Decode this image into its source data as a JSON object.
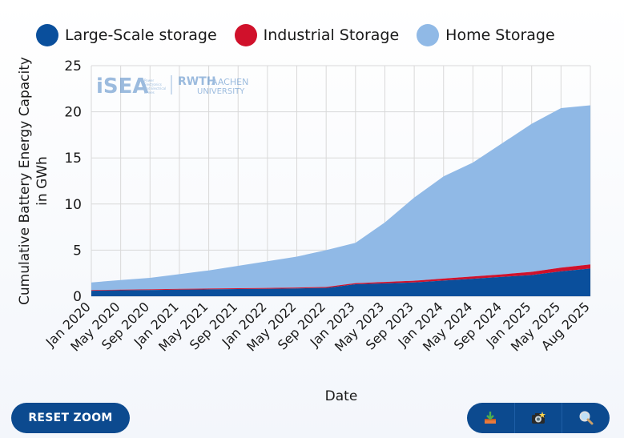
{
  "colors": {
    "large": "#0a4f9c",
    "industrial": "#d0112b",
    "home": "#90b9e6",
    "grid": "#d9d9d9",
    "button": "#0c4a8f"
  },
  "legend": {
    "items": [
      {
        "label": "Large-Scale storage",
        "color": "#0a4f9c"
      },
      {
        "label": "Industrial Storage",
        "color": "#d0112b"
      },
      {
        "label": "Home Storage",
        "color": "#90b9e6"
      }
    ]
  },
  "watermark": {
    "isea": "iSEA",
    "isea_sub": [
      "Power",
      "Electronics",
      "and Electrical",
      "Drives"
    ],
    "rwth": "RWTH",
    "aachen": "AACHEN",
    "university": "UNIVERSITY"
  },
  "buttons": {
    "reset_zoom": "RESET ZOOM",
    "download_icon": "download-icon",
    "screenshot_icon": "camera-icon",
    "zoom_icon": "magnifier-icon"
  },
  "chart_data": {
    "type": "area",
    "stacked": true,
    "xlabel": "Date",
    "ylabel_lines": [
      "Cumulative Battery Energy Capacity",
      "in GWh"
    ],
    "ylim": [
      0,
      25
    ],
    "yticks": [
      0,
      5,
      10,
      15,
      20,
      25
    ],
    "grid": true,
    "legend_position": "top",
    "x_tick_labels": [
      "Jan 2020",
      "May 2020",
      "Sep 2020",
      "Jan 2021",
      "May 2021",
      "Sep 2021",
      "Jan 2022",
      "May 2022",
      "Sep 2022",
      "Jan 2023",
      "May 2023",
      "Sep 2023",
      "Jan 2024",
      "May 2024",
      "Sep 2024",
      "Jan 2025",
      "May 2025",
      "Aug 2025"
    ],
    "x": [
      "Jan 2020",
      "May 2020",
      "Sep 2020",
      "Jan 2021",
      "May 2021",
      "Sep 2021",
      "Jan 2022",
      "May 2022",
      "Sep 2022",
      "Jan 2023",
      "May 2023",
      "Sep 2023",
      "Jan 2024",
      "May 2024",
      "Sep 2024",
      "Jan 2025",
      "May 2025",
      "Aug 2025"
    ],
    "series": [
      {
        "name": "Large-Scale storage",
        "values": [
          0.6,
          0.65,
          0.68,
          0.72,
          0.75,
          0.78,
          0.8,
          0.85,
          0.9,
          1.3,
          1.4,
          1.5,
          1.7,
          1.9,
          2.1,
          2.3,
          2.7,
          3.0
        ]
      },
      {
        "name": "Industrial Storage",
        "values": [
          0.06,
          0.07,
          0.07,
          0.08,
          0.08,
          0.09,
          0.1,
          0.1,
          0.11,
          0.12,
          0.15,
          0.18,
          0.22,
          0.25,
          0.28,
          0.35,
          0.4,
          0.45
        ]
      },
      {
        "name": "Home Storage",
        "values": [
          0.84,
          1.03,
          1.25,
          1.6,
          1.97,
          2.43,
          2.9,
          3.35,
          3.99,
          4.38,
          6.45,
          9.02,
          11.08,
          12.35,
          14.22,
          16.05,
          17.3,
          17.25
        ]
      }
    ]
  }
}
